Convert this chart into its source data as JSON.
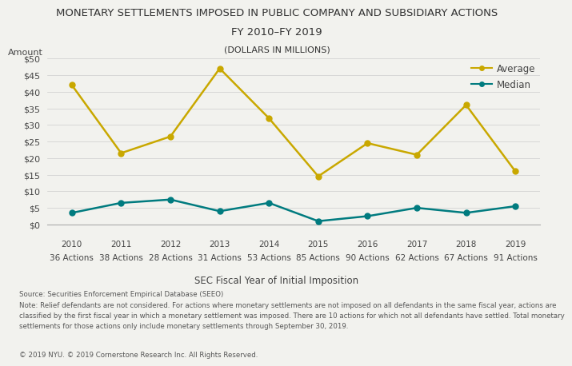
{
  "title_line1": "MONETARY SETTLEMENTS IMPOSED IN PUBLIC COMPANY AND SUBSIDIARY ACTIONS",
  "title_line2": "FY 2010–FY 2019",
  "title_line3": "(DOLLARS IN MILLIONS)",
  "ylabel": "Amount",
  "xlabel": "SEC Fiscal Year of Initial Imposition",
  "years": [
    "2010",
    "2011",
    "2012",
    "2013",
    "2014",
    "2015",
    "2016",
    "2017",
    "2018",
    "2019"
  ],
  "actions": [
    "36 Actions",
    "38 Actions",
    "28 Actions",
    "31 Actions",
    "53 Actions",
    "85 Actions",
    "90 Actions",
    "62 Actions",
    "67 Actions",
    "91 Actions"
  ],
  "average": [
    42.0,
    21.5,
    26.5,
    47.0,
    32.0,
    14.5,
    24.5,
    21.0,
    36.0,
    16.0
  ],
  "median": [
    3.5,
    6.5,
    7.5,
    4.0,
    6.5,
    1.0,
    2.5,
    5.0,
    3.5,
    5.5
  ],
  "average_color": "#C9A800",
  "median_color": "#007B7F",
  "ylim": [
    0,
    50
  ],
  "yticks": [
    0,
    5,
    10,
    15,
    20,
    25,
    30,
    35,
    40,
    45,
    50
  ],
  "source_text": "Source: Securities Enforcement Empirical Database (SEEO)",
  "note_line1": "Note: Relief defendants are not considered. For actions where monetary settlements are not imposed on all defendants in the same fiscal year, actions are",
  "note_line2": "classified by the first fiscal year in which a monetary settlement was imposed. There are 10 actions for which not all defendants have settled. Total monetary",
  "note_line3": "settlements for those actions only include monetary settlements through September 30, 2019.",
  "copyright_text": "© 2019 NYU. © 2019 Cornerstone Research Inc. All Rights Reserved.",
  "background_color": "#f2f2ee",
  "marker_style": "o",
  "marker_size": 5,
  "line_width": 1.8
}
